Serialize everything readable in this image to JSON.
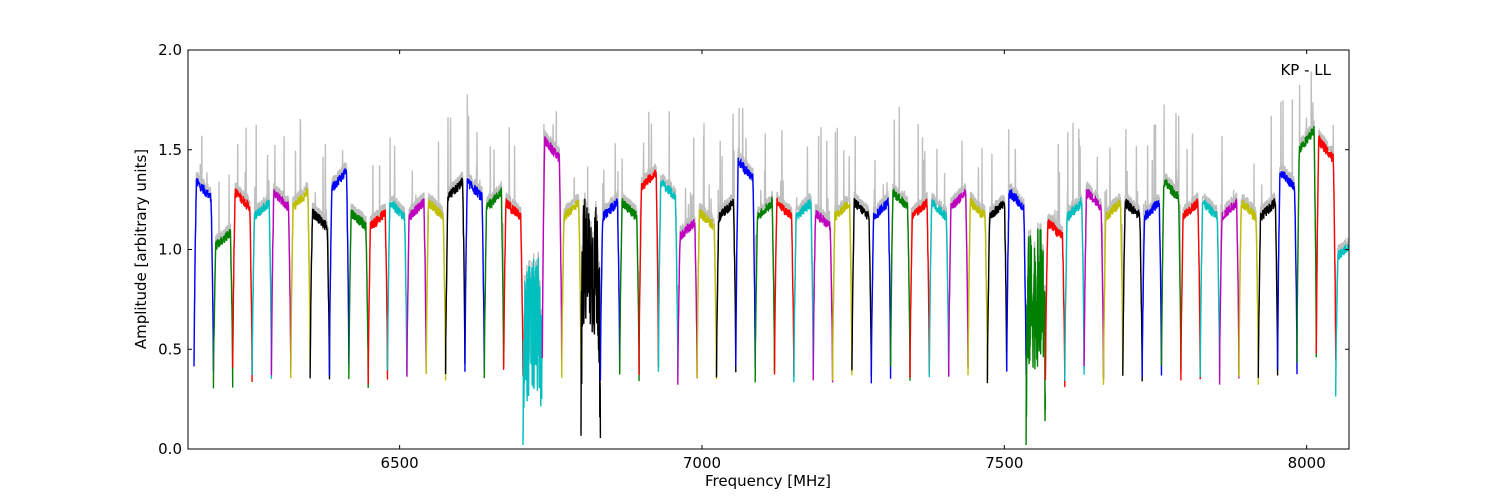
{
  "chart_data": {
    "type": "line",
    "title": "",
    "xlabel": "Frequency [MHz]",
    "ylabel": "Amplitude [arbitrary units]",
    "xlim": [
      6150,
      8070
    ],
    "ylim": [
      0.0,
      2.0
    ],
    "x_ticks": [
      6500,
      7000,
      7500,
      8000
    ],
    "y_ticks": [
      0.0,
      0.5,
      1.0,
      1.5,
      2.0
    ],
    "x_tick_labels": [
      "6500",
      "7000",
      "7500",
      "8000"
    ],
    "y_tick_labels": [
      "0.0",
      "0.5",
      "1.0",
      "1.5",
      "2.0"
    ],
    "grid": false,
    "annotation": "KP - LL",
    "background_series_color": "#bfbfbf",
    "channel_width_mhz": 32,
    "channel_colors": [
      "#0000ff",
      "#008000",
      "#ff0000",
      "#00bfbf",
      "#bf00bf",
      "#bfbf00",
      "#000000"
    ],
    "channel_centers": [
      6176,
      6208,
      6240,
      6272,
      6304,
      6336,
      6368,
      6400,
      6432,
      6464,
      6496,
      6528,
      6560,
      6592,
      6624,
      6656,
      6688,
      6720,
      6752,
      6784,
      6816,
      6848,
      6880,
      6912,
      6944,
      6976,
      7008,
      7040,
      7072,
      7104,
      7136,
      7168,
      7200,
      7232,
      7264,
      7296,
      7328,
      7360,
      7392,
      7424,
      7456,
      7488,
      7520,
      7552,
      7584,
      7616,
      7648,
      7680,
      7712,
      7744,
      7776,
      7808,
      7840,
      7872,
      7904,
      7936,
      7968,
      8000,
      8032,
      8064
    ],
    "channel_levels": [
      1.3,
      1.05,
      1.25,
      1.2,
      1.25,
      1.25,
      1.15,
      1.35,
      1.15,
      1.15,
      1.2,
      1.2,
      1.2,
      1.3,
      1.3,
      1.25,
      1.2,
      0.6,
      1.5,
      1.2,
      0.9,
      1.2,
      1.2,
      1.35,
      1.3,
      1.1,
      1.15,
      1.2,
      1.4,
      1.2,
      1.2,
      1.2,
      1.15,
      1.2,
      1.2,
      1.2,
      1.25,
      1.2,
      1.2,
      1.25,
      1.2,
      1.2,
      1.25,
      0.75,
      1.1,
      1.2,
      1.25,
      1.2,
      1.2,
      1.2,
      1.3,
      1.2,
      1.2,
      1.2,
      1.2,
      1.2,
      1.35,
      1.55,
      1.5,
      1.0
    ],
    "edge_min": 0.3
  }
}
